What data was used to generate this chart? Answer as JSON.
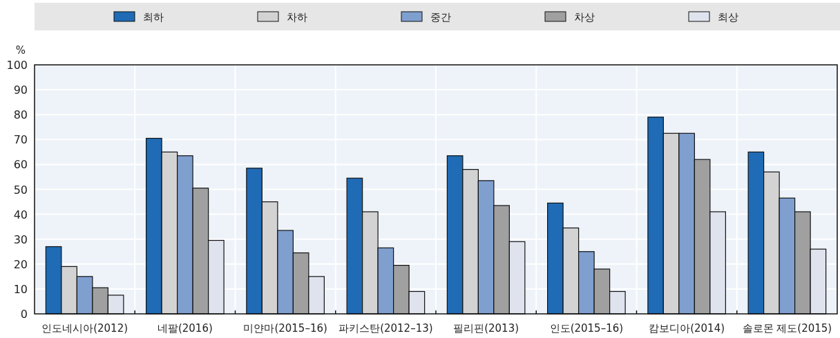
{
  "chart_data": {
    "type": "bar",
    "ylabel": "%",
    "legend": "top",
    "grid": true,
    "ylim": [
      0,
      100
    ],
    "yticks": [
      0,
      10,
      20,
      30,
      40,
      50,
      60,
      70,
      80,
      90,
      100
    ],
    "categories": [
      "인도네시아(2012)",
      "네팔(2016)",
      "미얀마(2015–16)",
      "파키스탄(2012–13)",
      "필리핀(2013)",
      "인도(2015–16)",
      "캄보디아(2014)",
      "솔로몬 제도(2015)"
    ],
    "series": [
      {
        "name": "최하",
        "color": "#1f6bb5",
        "values": [
          27,
          70.5,
          58.5,
          54.5,
          63.5,
          44.5,
          79,
          65
        ]
      },
      {
        "name": "차하",
        "color": "#d3d3d3",
        "values": [
          19,
          65,
          45,
          41,
          58,
          34.5,
          72.5,
          57
        ]
      },
      {
        "name": "중간",
        "color": "#7f9fcf",
        "values": [
          15,
          63.5,
          33.5,
          26.5,
          53.5,
          25,
          72.5,
          46.5
        ]
      },
      {
        "name": "차상",
        "color": "#a0a0a0",
        "values": [
          10.5,
          50.5,
          24.5,
          19.5,
          43.5,
          18,
          62,
          41
        ]
      },
      {
        "name": "최상",
        "color": "#dfe3ee",
        "values": [
          7.5,
          29.5,
          15,
          9,
          29,
          9,
          41,
          26
        ]
      }
    ]
  }
}
